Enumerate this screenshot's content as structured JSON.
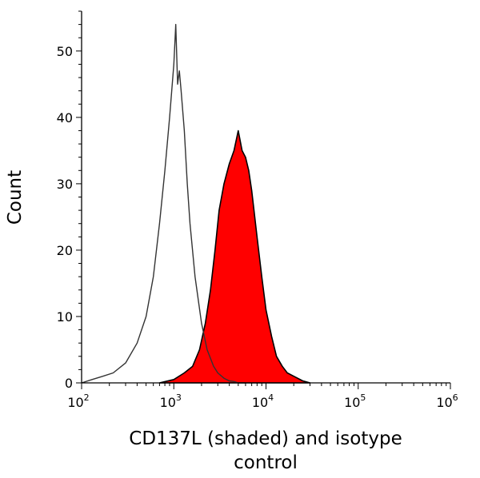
{
  "chart_data": {
    "type": "area",
    "title": "",
    "xlabel_lines": [
      "CD137L (shaded) and isotype",
      "control"
    ],
    "ylabel": "Count",
    "xscale": "log",
    "xlim": [
      100,
      1000000
    ],
    "ylim": [
      0,
      56
    ],
    "x_ticks": [
      {
        "value": 100,
        "base": "10",
        "exp": "2"
      },
      {
        "value": 1000,
        "base": "10",
        "exp": "3"
      },
      {
        "value": 10000,
        "base": "10",
        "exp": "4"
      },
      {
        "value": 100000,
        "base": "10",
        "exp": "5"
      },
      {
        "value": 1000000,
        "base": "10",
        "exp": "6"
      }
    ],
    "y_ticks": [
      0,
      10,
      20,
      30,
      40,
      50
    ],
    "y_minor_step": 2,
    "series": [
      {
        "name": "isotype control",
        "style": "outline",
        "color": "#333333",
        "x": [
          100,
          130,
          170,
          220,
          300,
          400,
          500,
          600,
          700,
          800,
          900,
          1000,
          1050,
          1100,
          1150,
          1200,
          1300,
          1400,
          1500,
          1700,
          2000,
          2300,
          2700,
          3000,
          3500,
          4000,
          4500,
          5000,
          6000
        ],
        "y": [
          0,
          0.5,
          1,
          1.5,
          3,
          6,
          10,
          16,
          24,
          32,
          40,
          48,
          54,
          45,
          47,
          44,
          38,
          30,
          24,
          16,
          9,
          5,
          2.5,
          1.5,
          0.7,
          0.3,
          0.2,
          0,
          0
        ]
      },
      {
        "name": "CD137L",
        "style": "shaded",
        "color": "#ff0000",
        "edge_color": "#000000",
        "x": [
          700,
          1000,
          1300,
          1600,
          1900,
          2200,
          2500,
          2800,
          3100,
          3500,
          4000,
          4500,
          5000,
          5500,
          6000,
          6500,
          7000,
          8000,
          9000,
          10000,
          11500,
          13000,
          15000,
          17000,
          20000,
          25000,
          30000
        ],
        "y": [
          0,
          0.5,
          1.5,
          2.5,
          5,
          9,
          14,
          20,
          26,
          30,
          33,
          35,
          38,
          35,
          34,
          32,
          29,
          22,
          16,
          11,
          7,
          4,
          2.5,
          1.5,
          1,
          0.3,
          0
        ]
      }
    ]
  }
}
